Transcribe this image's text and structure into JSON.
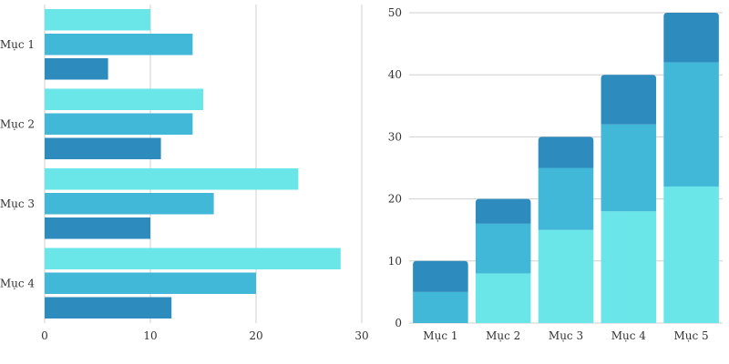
{
  "colors": {
    "series1": "#6ae5e8",
    "series2": "#42b8d8",
    "series3": "#2e8bbd",
    "grid": "#cfcfcf",
    "text": "#333333"
  },
  "chart_data": [
    {
      "type": "bar",
      "orientation": "horizontal",
      "title": "",
      "xlabel": "",
      "ylabel": "",
      "categories": [
        "Mục 1",
        "Mục 2",
        "Mục 3",
        "Mục 4"
      ],
      "series": [
        {
          "values": [
            10,
            15,
            24,
            28
          ]
        },
        {
          "values": [
            14,
            14,
            16,
            20
          ]
        },
        {
          "values": [
            6,
            11,
            10,
            12
          ]
        }
      ],
      "xlim": [
        0,
        30
      ],
      "xticks": [
        "0",
        "10",
        "20",
        "30"
      ],
      "grid": true,
      "legend": "none"
    },
    {
      "type": "bar",
      "orientation": "vertical",
      "stacked": true,
      "title": "",
      "xlabel": "",
      "ylabel": "",
      "categories": [
        "Mục 1",
        "Mục 2",
        "Mục 3",
        "Mục 4",
        "Mục 5"
      ],
      "series": [
        {
          "values": [
            0,
            8,
            15,
            18,
            22
          ]
        },
        {
          "values": [
            5,
            8,
            10,
            14,
            20
          ]
        },
        {
          "values": [
            5,
            4,
            5,
            8,
            8
          ]
        }
      ],
      "ylim": [
        0,
        50
      ],
      "yticks": [
        "0",
        "10",
        "20",
        "30",
        "40",
        "50"
      ],
      "grid": true,
      "legend": "none"
    }
  ]
}
